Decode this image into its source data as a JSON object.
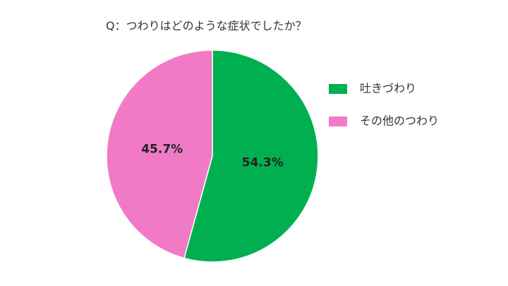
{
  "chart_data": {
    "type": "pie",
    "title": "Q：つわりはどのような症状でしたか？",
    "categories": [
      "吐きづわり",
      "その他のつわり"
    ],
    "values": [
      54.3,
      45.7
    ],
    "data_labels": [
      "54.3%",
      "45.7%"
    ],
    "colors": [
      "#00B050",
      "#F07AC6"
    ],
    "start_angle": "12 o'clock",
    "direction": "clockwise",
    "legend": {
      "position": "right",
      "items": [
        "吐きづわり",
        "その他のつわり"
      ]
    }
  }
}
